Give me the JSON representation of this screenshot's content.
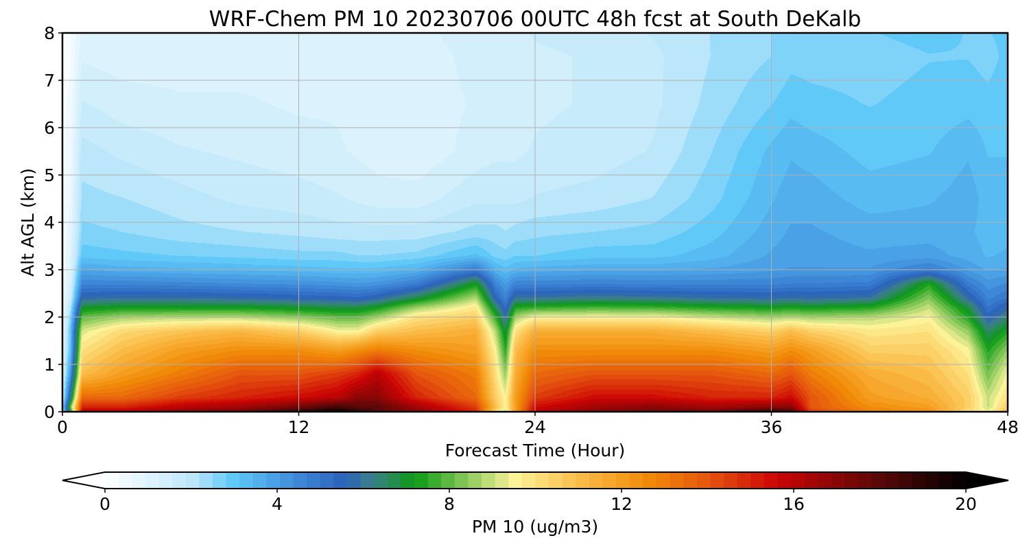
{
  "chart_data": {
    "type": "heatmap",
    "title": "WRF-Chem PM 10  20230706 00UTC 48h fcst at South DeKalb",
    "xlabel": "Forecast Time (Hour)",
    "ylabel": "Alt AGL (km)",
    "xlim": [
      0,
      48
    ],
    "ylim": [
      0,
      8
    ],
    "xticks": [
      0,
      12,
      24,
      36,
      48
    ],
    "yticks": [
      0,
      1,
      2,
      3,
      4,
      5,
      6,
      7,
      8
    ],
    "grid": true,
    "colorbar": {
      "label": "PM 10  (ug/m3)",
      "range": [
        0,
        20
      ],
      "ticks": [
        0,
        4,
        8,
        12,
        16,
        20
      ],
      "extend": "both",
      "levels": 64,
      "stops": [
        {
          "v": 0,
          "color": "#ffffff"
        },
        {
          "v": 2,
          "color": "#bfe8fa"
        },
        {
          "v": 3,
          "color": "#5ec8f8"
        },
        {
          "v": 4.6,
          "color": "#3d84d6"
        },
        {
          "v": 5.6,
          "color": "#2a62b8"
        },
        {
          "v": 6.2,
          "color": "#3d7f8a"
        },
        {
          "v": 7.2,
          "color": "#0a9a14"
        },
        {
          "v": 9.5,
          "color": "#fcf39a"
        },
        {
          "v": 11,
          "color": "#fbbd4a"
        },
        {
          "v": 12.6,
          "color": "#f28b08"
        },
        {
          "v": 14,
          "color": "#e5560e"
        },
        {
          "v": 15.6,
          "color": "#cc0404"
        },
        {
          "v": 18,
          "color": "#5a0808"
        },
        {
          "v": 20,
          "color": "#000000"
        }
      ]
    },
    "time_hours": [
      0,
      0.4,
      1,
      3,
      6,
      9,
      12,
      14,
      15,
      16,
      18,
      21,
      22,
      22.5,
      23,
      24,
      27,
      30,
      33,
      36,
      37,
      38,
      41,
      44,
      46,
      47,
      48
    ],
    "altitude_km": [
      0,
      0.1,
      0.3,
      0.8,
      1.3,
      1.7,
      2.0,
      2.2,
      2.4,
      2.7,
      3.0,
      3.3,
      3.8,
      4.5,
      5.5,
      6.5,
      7.5,
      8.0
    ],
    "pm10_ugm3": [
      [
        2,
        2.5,
        1.5,
        1,
        1,
        0.5,
        0.5,
        0.5,
        0.5,
        0.5,
        0.3,
        0.3,
        0.3,
        0.2,
        0.2,
        0.2,
        0.1,
        0.1
      ],
      [
        7,
        8,
        6,
        4,
        3,
        3,
        2.5,
        2,
        1.5,
        1.2,
        1,
        1,
        0.8,
        0.6,
        0.5,
        0.4,
        0.3,
        0.3
      ],
      [
        16,
        15,
        13.5,
        11,
        10,
        9.2,
        8,
        7,
        5.8,
        4.6,
        3.8,
        3.0,
        2.6,
        2.3,
        2.0,
        1.6,
        1.2,
        1.0
      ],
      [
        16,
        15,
        13.5,
        12,
        11,
        10.2,
        8.6,
        7.2,
        5.9,
        4.6,
        3.6,
        2.9,
        2.5,
        2.2,
        1.8,
        1.4,
        1.1,
        1.0
      ],
      [
        17,
        16,
        14.5,
        13,
        12,
        10.8,
        8.8,
        7.2,
        5.9,
        4.5,
        3.5,
        2.8,
        2.3,
        2.0,
        1.6,
        1.3,
        1.1,
        1.0
      ],
      [
        17.5,
        16.5,
        15,
        14,
        12.5,
        11.2,
        8.8,
        7.2,
        5.8,
        4.4,
        3.4,
        2.7,
        2.2,
        1.8,
        1.5,
        1.3,
        1.1,
        1.0
      ],
      [
        19,
        17.5,
        15.5,
        14,
        12.5,
        10.5,
        8.4,
        7,
        5.6,
        4.3,
        3.3,
        2.6,
        2.1,
        1.7,
        1.4,
        1.2,
        1.1,
        1.0
      ],
      [
        20,
        18.5,
        16,
        14.5,
        12,
        9.5,
        8,
        6.8,
        5.5,
        4.2,
        3.2,
        2.6,
        2.0,
        1.6,
        1.3,
        1.2,
        1.1,
        1.0
      ],
      [
        19,
        18,
        17,
        15,
        12.5,
        9.5,
        8,
        6.8,
        5.4,
        4.1,
        3.2,
        2.5,
        2.0,
        1.5,
        1.2,
        1.1,
        1.0,
        1.0
      ],
      [
        18,
        18,
        17,
        16,
        13,
        10.5,
        8.6,
        7.2,
        5.7,
        4.2,
        3.2,
        2.5,
        2.0,
        1.4,
        1.1,
        1.0,
        1.0,
        1.0
      ],
      [
        17,
        16.5,
        15,
        14,
        12.5,
        11,
        10,
        8.6,
        6.8,
        4.8,
        3.5,
        2.6,
        2.0,
        1.4,
        1.0,
        1.0,
        1.0,
        1.1
      ],
      [
        15,
        14.5,
        13.5,
        13,
        12,
        11.5,
        10.5,
        9.8,
        8.8,
        7.2,
        4.8,
        3.2,
        2.3,
        1.8,
        1.4,
        1.3,
        1.4,
        1.5
      ],
      [
        10,
        11,
        10.5,
        10,
        9.5,
        8.8,
        7.6,
        6.6,
        5.5,
        4.6,
        3.5,
        2.7,
        2.3,
        1.8,
        1.5,
        1.4,
        1.4,
        1.5
      ],
      [
        9,
        9.5,
        9.5,
        8.5,
        7.5,
        6.8,
        5.8,
        5.2,
        4.6,
        4.0,
        3.2,
        2.6,
        2.2,
        1.8,
        1.5,
        1.4,
        1.4,
        1.5
      ],
      [
        12,
        12,
        12,
        11.5,
        11,
        10,
        8.6,
        7.4,
        6.0,
        4.6,
        3.5,
        2.8,
        2.3,
        1.8,
        1.5,
        1.4,
        1.4,
        1.5
      ],
      [
        16,
        15.5,
        14.5,
        13.5,
        12.5,
        11.5,
        9.5,
        7.6,
        6.0,
        4.6,
        3.6,
        2.8,
        2.4,
        1.9,
        1.6,
        1.5,
        1.5,
        1.6
      ],
      [
        17,
        16.5,
        15.5,
        14,
        12.5,
        11.5,
        9.5,
        7.8,
        6.2,
        4.7,
        3.7,
        3.0,
        2.5,
        2.0,
        1.7,
        1.6,
        1.6,
        1.7
      ],
      [
        17.5,
        17,
        15.5,
        14,
        12.5,
        11.5,
        9.5,
        7.7,
        6.1,
        4.6,
        3.7,
        3.0,
        2.6,
        2.2,
        1.9,
        1.8,
        1.8,
        1.9
      ],
      [
        17.5,
        16.5,
        15,
        14,
        12.5,
        11,
        9.0,
        7.4,
        5.9,
        4.6,
        3.8,
        3.3,
        3.0,
        2.7,
        2.5,
        2.3,
        2.2,
        2.2
      ],
      [
        19,
        17,
        15,
        13.5,
        12,
        10.5,
        8.6,
        7.2,
        5.8,
        4.6,
        4.0,
        3.8,
        3.6,
        3.4,
        3.2,
        2.8,
        2.5,
        2.5
      ],
      [
        18.5,
        17,
        15.5,
        14,
        12.5,
        11,
        8.8,
        7.3,
        5.9,
        4.7,
        4.1,
        3.9,
        3.8,
        3.6,
        3.4,
        3.0,
        2.7,
        2.7
      ],
      [
        14.5,
        14,
        14,
        13,
        12,
        10.5,
        8.6,
        7.2,
        5.8,
        4.7,
        4.1,
        3.9,
        3.8,
        3.6,
        3.3,
        2.9,
        2.7,
        2.7
      ],
      [
        13,
        12.5,
        12,
        11.5,
        10.5,
        9.8,
        8.8,
        7.4,
        6.0,
        4.8,
        4.1,
        3.8,
        3.6,
        3.3,
        3.0,
        2.8,
        2.7,
        2.8
      ],
      [
        12.5,
        12,
        11.5,
        11,
        10.5,
        10,
        9.5,
        9.0,
        8.4,
        7.4,
        4.8,
        3.9,
        3.6,
        3.4,
        3.1,
        2.9,
        2.8,
        2.9
      ],
      [
        10,
        10.5,
        10.5,
        10,
        9.5,
        8.5,
        7.4,
        6.8,
        5.8,
        4.8,
        4.0,
        3.6,
        3.5,
        3.6,
        3.4,
        3.0,
        2.8,
        2.8
      ],
      [
        9.5,
        9,
        9,
        8.2,
        7.4,
        6.5,
        5.5,
        5.0,
        4.6,
        4.2,
        3.7,
        3.4,
        3.3,
        3.3,
        3.1,
        2.9,
        2.7,
        2.8
      ],
      [
        11,
        10.5,
        10,
        9.5,
        8.5,
        7.4,
        6.4,
        5.8,
        5.0,
        4.4,
        3.8,
        3.5,
        3.3,
        3.3,
        3.1,
        3.0,
        2.9,
        2.9
      ]
    ]
  }
}
